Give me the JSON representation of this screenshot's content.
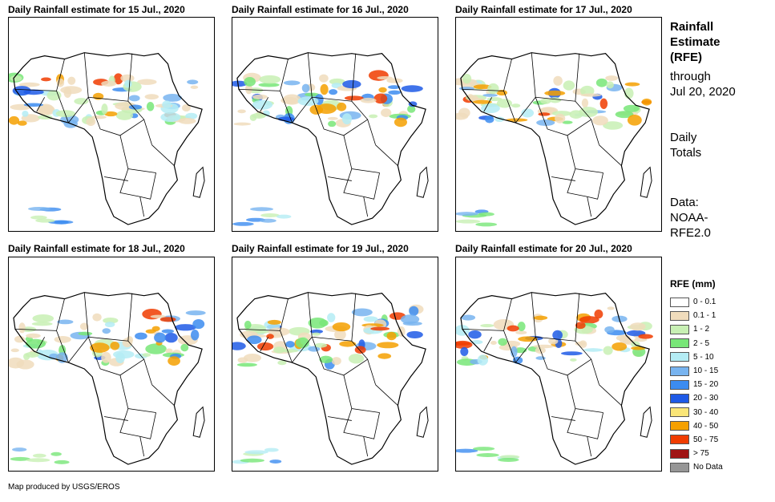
{
  "panels": [
    {
      "title": "Daily Rainfall estimate for 15 Jul., 2020"
    },
    {
      "title": "Daily Rainfall estimate for 16 Jul., 2020"
    },
    {
      "title": "Daily Rainfall estimate for 17 Jul., 2020"
    },
    {
      "title": "Daily Rainfall estimate for 18 Jul., 2020"
    },
    {
      "title": "Daily Rainfall estimate for 19 Jul., 2020"
    },
    {
      "title": "Daily Rainfall estimate for 20 Jul., 2020"
    }
  ],
  "side": {
    "title_line1": "Rainfall",
    "title_line2": "Estimate",
    "title_line3": "(RFE)",
    "through_line1": "through",
    "through_line2": "Jul 20, 2020",
    "daily_line1": "Daily",
    "daily_line2": "Totals",
    "data_line1": "Data:",
    "data_line2": "NOAA-",
    "data_line3": "RFE2.0"
  },
  "legend": {
    "title": "RFE (mm)",
    "items": [
      {
        "label": "0 - 0.1",
        "color": "#ffffff"
      },
      {
        "label": "0.1 - 1",
        "color": "#f0dcbc"
      },
      {
        "label": "1 - 2",
        "color": "#c8f0b4"
      },
      {
        "label": "2 - 5",
        "color": "#78e678"
      },
      {
        "label": "5 - 10",
        "color": "#b4ecf4"
      },
      {
        "label": "10 - 15",
        "color": "#78b4f0"
      },
      {
        "label": "15 - 20",
        "color": "#3c8cf0"
      },
      {
        "label": "20 - 30",
        "color": "#1e5ae6"
      },
      {
        "label": "30 - 40",
        "color": "#fae678"
      },
      {
        "label": "40 - 50",
        "color": "#f5a000"
      },
      {
        "label": "50 - 75",
        "color": "#f03c00"
      },
      {
        "label": "> 75",
        "color": "#a01414"
      },
      {
        "label": "No Data",
        "color": "#969696"
      }
    ]
  },
  "footer": "Map produced by USGS/EROS"
}
